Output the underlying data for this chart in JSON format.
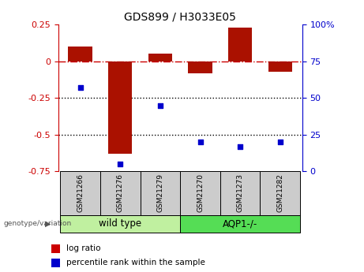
{
  "title": "GDS899 / H3033E05",
  "samples": [
    "GSM21266",
    "GSM21276",
    "GSM21279",
    "GSM21270",
    "GSM21273",
    "GSM21282"
  ],
  "log_ratio": [
    0.1,
    -0.63,
    0.05,
    -0.08,
    0.23,
    -0.07
  ],
  "percentile_rank": [
    57,
    5,
    45,
    20,
    17,
    20
  ],
  "groups": [
    {
      "label": "wild type",
      "color": "#c0f0a0",
      "color_dark": "#a0e080"
    },
    {
      "label": "AQP1-/-",
      "color": "#55dd55",
      "color_dark": "#44cc44"
    }
  ],
  "bar_color": "#aa1100",
  "dot_color": "#0000cc",
  "ylim_left": [
    -0.75,
    0.25
  ],
  "ylim_right": [
    0,
    100
  ],
  "yticks_left": [
    -0.75,
    -0.5,
    -0.25,
    0,
    0.25
  ],
  "yticks_right": [
    0,
    25,
    50,
    75,
    100
  ],
  "hline_zero_color": "#cc0000",
  "hline_dotted_color": "#000000",
  "left_axis_color": "#cc0000",
  "right_axis_color": "#0000cc",
  "legend_log_ratio_color": "#cc0000",
  "legend_pct_color": "#0000cc",
  "group_label_color": "#555555",
  "sample_box_color": "#cccccc",
  "bar_width": 0.6
}
